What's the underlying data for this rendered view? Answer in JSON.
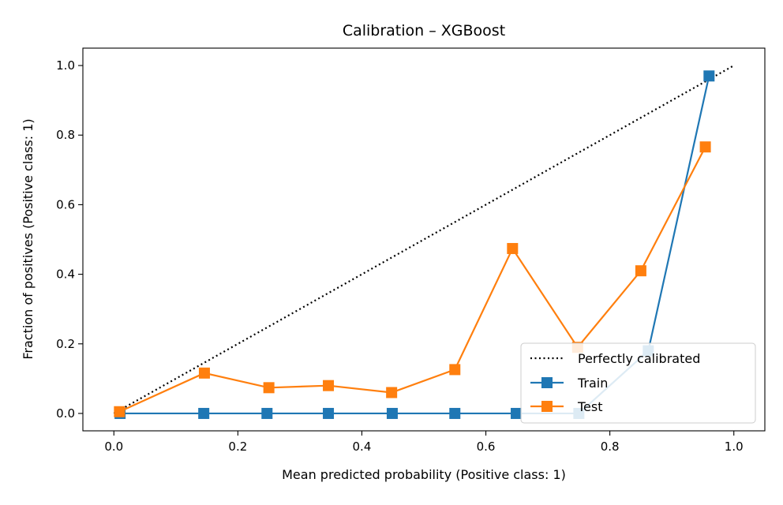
{
  "chart_data": {
    "type": "line",
    "title": "Calibration – XGBoost",
    "xlabel": "Mean predicted probability (Positive class: 1)",
    "ylabel": "Fraction of positives (Positive class: 1)",
    "xlim": [
      -0.05,
      1.05
    ],
    "ylim": [
      -0.05,
      1.05
    ],
    "xticks": [
      0.0,
      0.2,
      0.4,
      0.6,
      0.8,
      1.0
    ],
    "yticks": [
      0.0,
      0.2,
      0.4,
      0.6,
      0.8,
      1.0
    ],
    "xtick_labels": [
      "0.0",
      "0.2",
      "0.4",
      "0.6",
      "0.8",
      "1.0"
    ],
    "ytick_labels": [
      "0.0",
      "0.2",
      "0.4",
      "0.6",
      "0.8",
      "1.0"
    ],
    "grid": false,
    "legend_position": "bottom-right",
    "reference": {
      "name": "Perfectly calibrated",
      "x": [
        0.0,
        1.0
      ],
      "y": [
        0.0,
        1.0
      ],
      "color": "#000000",
      "style": "dotted"
    },
    "series": [
      {
        "name": "Train",
        "color": "#1f77b4",
        "marker": "square",
        "x": [
          0.01,
          0.145,
          0.247,
          0.346,
          0.449,
          0.55,
          0.649,
          0.75,
          0.862,
          0.96
        ],
        "y": [
          0.0,
          0.0,
          0.0,
          0.0,
          0.0,
          0.0,
          0.0,
          0.0,
          0.18,
          0.97
        ]
      },
      {
        "name": "Test",
        "color": "#ff7f0e",
        "marker": "square",
        "x": [
          0.009,
          0.146,
          0.25,
          0.346,
          0.448,
          0.55,
          0.643,
          0.748,
          0.85,
          0.954
        ],
        "y": [
          0.005,
          0.116,
          0.074,
          0.08,
          0.06,
          0.126,
          0.474,
          0.19,
          0.41,
          0.766
        ]
      }
    ]
  }
}
